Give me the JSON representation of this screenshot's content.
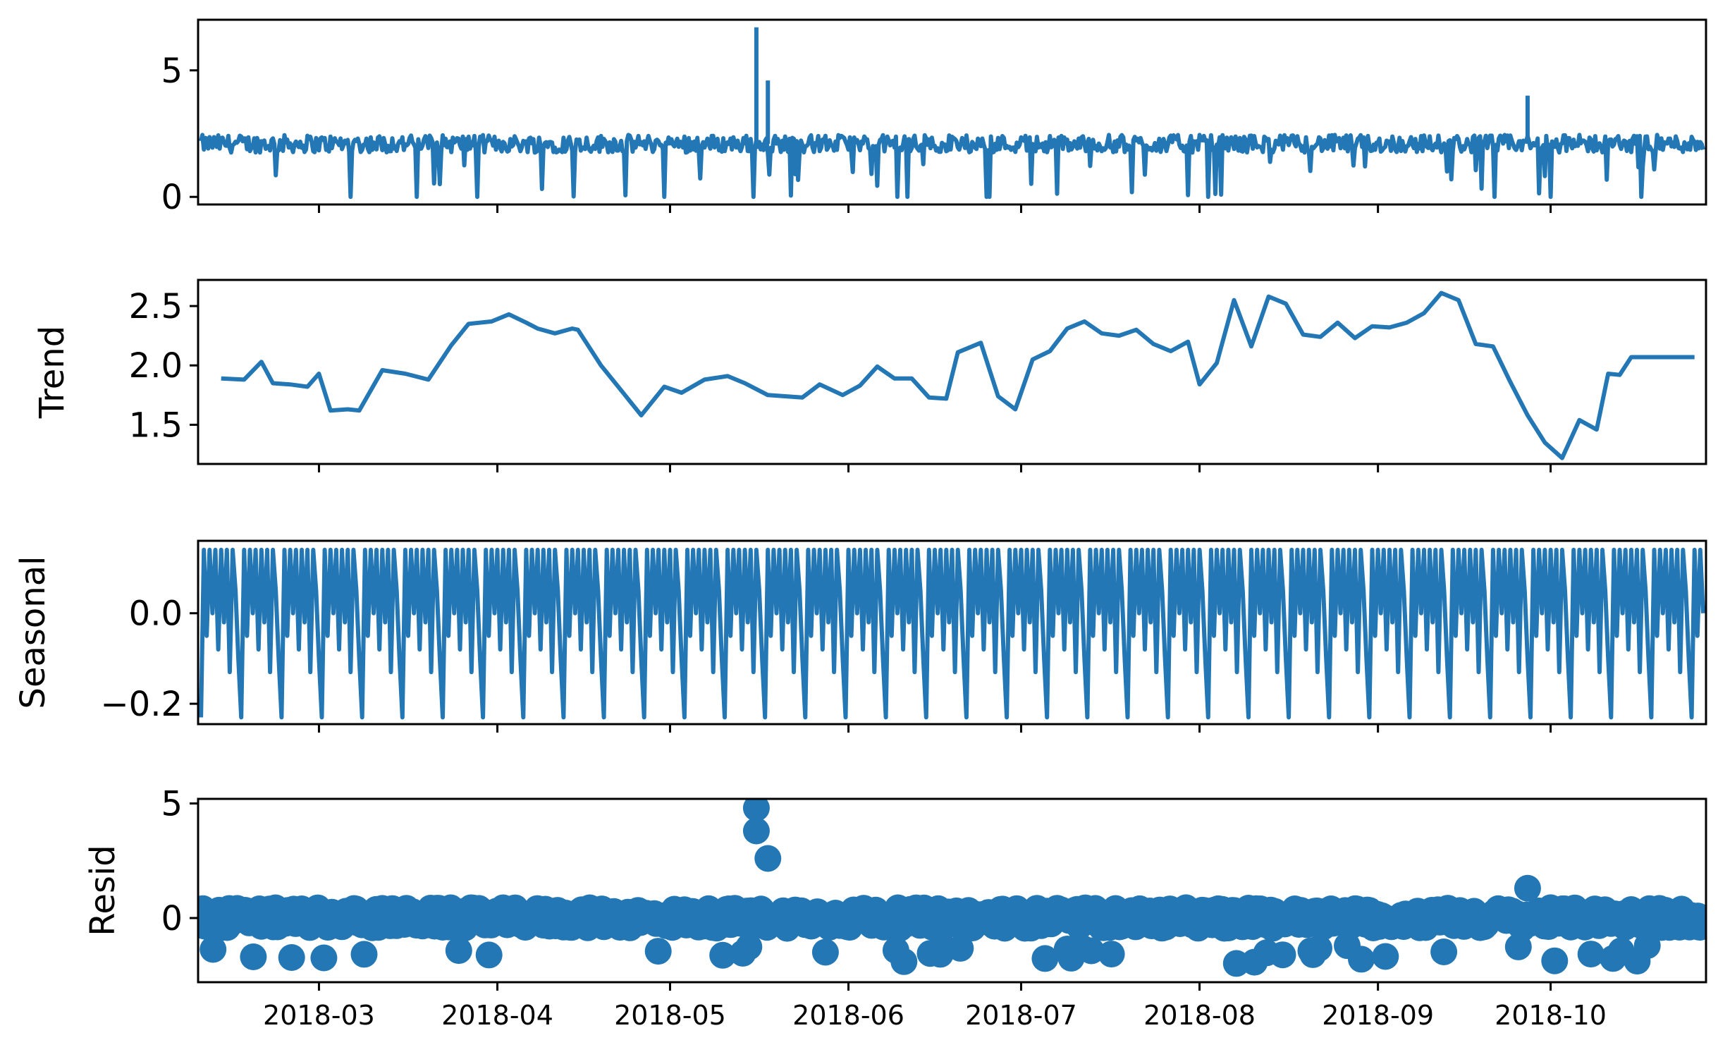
{
  "chart_data": [
    {
      "type": "line",
      "panel": "observed",
      "ylabel": "",
      "ylim": [
        -0.3,
        7.0
      ],
      "yticks": [
        0,
        5
      ],
      "ytick_labels": [
        "0",
        "5"
      ],
      "baseline": 2.1,
      "color": "#2277b4",
      "spikes": [
        {
          "date": "2018-05-16",
          "value": 6.7
        },
        {
          "date": "2018-05-18",
          "value": 4.6
        },
        {
          "date": "2018-09-27",
          "value": 4.0
        }
      ]
    },
    {
      "type": "line",
      "panel": "trend",
      "ylabel": "Trend",
      "ylim": [
        1.17,
        2.72
      ],
      "yticks": [
        1.5,
        2.0,
        2.5
      ],
      "ytick_labels": [
        "1.5",
        "2.0",
        "2.5"
      ],
      "color": "#2277b4",
      "x": [
        "2018-02-12",
        "2018-02-16",
        "2018-02-19",
        "2018-02-21",
        "2018-02-24",
        "2018-02-27",
        "2018-03-01",
        "2018-03-03",
        "2018-03-06",
        "2018-03-08",
        "2018-03-12",
        "2018-03-16",
        "2018-03-20",
        "2018-03-24",
        "2018-03-27",
        "2018-03-31",
        "2018-04-03",
        "2018-04-06",
        "2018-04-08",
        "2018-04-11",
        "2018-04-14",
        "2018-04-15",
        "2018-04-19",
        "2018-04-22",
        "2018-04-26",
        "2018-04-30",
        "2018-05-03",
        "2018-05-07",
        "2018-05-11",
        "2018-05-14",
        "2018-05-18",
        "2018-05-21",
        "2018-05-24",
        "2018-05-27",
        "2018-05-31",
        "2018-06-03",
        "2018-06-06",
        "2018-06-09",
        "2018-06-12",
        "2018-06-15",
        "2018-06-18",
        "2018-06-20",
        "2018-06-24",
        "2018-06-27",
        "2018-06-30",
        "2018-07-03",
        "2018-07-06",
        "2018-07-09",
        "2018-07-12",
        "2018-07-15",
        "2018-07-18",
        "2018-07-21",
        "2018-07-24",
        "2018-07-27",
        "2018-07-30",
        "2018-08-01",
        "2018-08-04",
        "2018-08-07",
        "2018-08-10",
        "2018-08-13",
        "2018-08-16",
        "2018-08-19",
        "2018-08-22",
        "2018-08-25",
        "2018-08-28",
        "2018-08-31",
        "2018-09-03",
        "2018-09-06",
        "2018-09-09",
        "2018-09-12",
        "2018-09-15",
        "2018-09-18",
        "2018-09-21",
        "2018-09-24",
        "2018-09-27",
        "2018-09-30",
        "2018-10-03",
        "2018-10-06",
        "2018-10-09",
        "2018-10-11",
        "2018-10-13",
        "2018-10-15",
        "2018-10-17",
        "2018-10-20",
        "2018-10-23",
        "2018-10-26"
      ],
      "y": [
        1.89,
        1.88,
        2.03,
        1.85,
        1.84,
        1.82,
        1.93,
        1.62,
        1.63,
        1.62,
        1.96,
        1.93,
        1.88,
        2.17,
        2.35,
        2.37,
        2.43,
        2.36,
        2.31,
        2.27,
        2.31,
        2.3,
        2.0,
        1.82,
        1.58,
        1.82,
        1.77,
        1.88,
        1.91,
        1.85,
        1.75,
        1.74,
        1.73,
        1.84,
        1.75,
        1.83,
        1.99,
        1.89,
        1.89,
        1.73,
        1.72,
        2.11,
        2.19,
        1.74,
        1.63,
        2.05,
        2.12,
        2.31,
        2.37,
        2.27,
        2.25,
        2.3,
        2.18,
        2.12,
        2.2,
        1.84,
        2.02,
        2.55,
        2.16,
        2.58,
        2.52,
        2.26,
        2.24,
        2.36,
        2.23,
        2.33,
        2.32,
        2.36,
        2.44,
        2.61,
        2.55,
        2.18,
        2.16,
        1.86,
        1.58,
        1.35,
        1.22,
        1.54,
        1.46,
        1.93,
        1.92,
        2.07,
        2.07,
        2.07,
        2.07,
        2.07
      ]
    },
    {
      "type": "line",
      "panel": "seasonal",
      "ylabel": "Seasonal",
      "ylim": [
        -0.245,
        0.16
      ],
      "yticks": [
        -0.2,
        0.0
      ],
      "ytick_labels": [
        "−0.2",
        "0.0"
      ],
      "period_days": 7,
      "max": 0.14,
      "min": -0.23,
      "color": "#2277b4"
    },
    {
      "type": "scatter",
      "panel": "resid",
      "ylabel": "Resid",
      "ylim": [
        -2.8,
        5.2
      ],
      "yticks": [
        0,
        5
      ],
      "ytick_labels": [
        "0",
        "5"
      ],
      "color": "#2277b4",
      "outliers": [
        {
          "date": "2018-05-16",
          "value": 4.8
        },
        {
          "date": "2018-05-16",
          "value": 3.8
        },
        {
          "date": "2018-05-18",
          "value": 2.6
        },
        {
          "date": "2018-09-27",
          "value": 1.3
        }
      ]
    }
  ],
  "x_axis": {
    "range": [
      "2018-02-08",
      "2018-10-28"
    ],
    "ticks": [
      "2018-03-01",
      "2018-04-01",
      "2018-05-01",
      "2018-06-01",
      "2018-07-01",
      "2018-08-01",
      "2018-09-01",
      "2018-10-01"
    ],
    "tick_labels": [
      "2018-03",
      "2018-04",
      "2018-05",
      "2018-06",
      "2018-07",
      "2018-08",
      "2018-09",
      "2018-10"
    ]
  }
}
